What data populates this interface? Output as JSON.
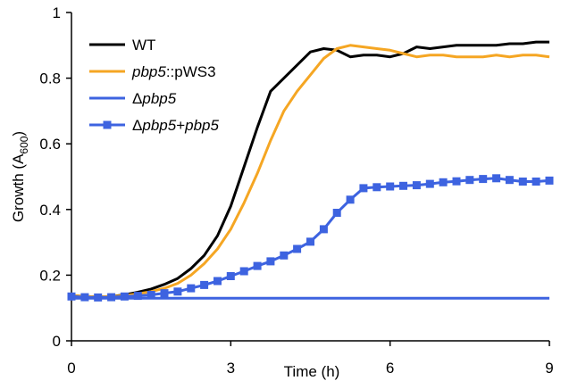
{
  "chart_data": {
    "type": "line",
    "xlabel": "Time (h)",
    "ylabel": {
      "prefix": "Growth (A",
      "subscript": "600",
      "suffix": ")"
    },
    "xlim": [
      0,
      9
    ],
    "ylim": [
      0,
      1
    ],
    "x_ticks": [
      "0",
      "3",
      "6",
      "9"
    ],
    "y_ticks": [
      "0",
      "0.2",
      "0.4",
      "0.6",
      "0.8",
      "1"
    ],
    "grid": false,
    "legend_position": "top-left",
    "series": [
      {
        "key": "wt",
        "legend": [
          {
            "text": "WT",
            "italic": false
          }
        ],
        "color": "#000000",
        "marker": "none",
        "x": [
          0,
          0.25,
          0.5,
          0.75,
          1,
          1.25,
          1.5,
          1.75,
          2,
          2.25,
          2.5,
          2.75,
          3,
          3.25,
          3.5,
          3.75,
          4,
          4.25,
          4.5,
          4.75,
          5,
          5.25,
          5.5,
          5.75,
          6,
          6.25,
          6.5,
          6.75,
          7,
          7.25,
          7.5,
          7.75,
          8,
          8.25,
          8.5,
          8.75,
          9
        ],
        "values": [
          0.138,
          0.135,
          0.134,
          0.135,
          0.14,
          0.148,
          0.158,
          0.172,
          0.19,
          0.22,
          0.26,
          0.32,
          0.41,
          0.53,
          0.65,
          0.76,
          0.8,
          0.84,
          0.88,
          0.89,
          0.885,
          0.865,
          0.87,
          0.87,
          0.865,
          0.875,
          0.895,
          0.89,
          0.895,
          0.9,
          0.9,
          0.9,
          0.9,
          0.905,
          0.905,
          0.91,
          0.91
        ]
      },
      {
        "key": "pbp5-pws3",
        "legend": [
          {
            "text": "pbp5",
            "italic": true
          },
          {
            "text": "::pWS3",
            "italic": false
          }
        ],
        "color": "#f5a623",
        "marker": "none",
        "x": [
          0,
          0.25,
          0.5,
          0.75,
          1,
          1.25,
          1.5,
          1.75,
          2,
          2.25,
          2.5,
          2.75,
          3,
          3.25,
          3.5,
          3.75,
          4,
          4.25,
          4.5,
          4.75,
          5,
          5.25,
          5.5,
          5.75,
          6,
          6.25,
          6.5,
          6.75,
          7,
          7.25,
          7.5,
          7.75,
          8,
          8.25,
          8.5,
          8.75,
          9
        ],
        "values": [
          0.138,
          0.135,
          0.134,
          0.135,
          0.138,
          0.143,
          0.15,
          0.16,
          0.175,
          0.2,
          0.235,
          0.28,
          0.34,
          0.42,
          0.51,
          0.61,
          0.7,
          0.76,
          0.81,
          0.86,
          0.89,
          0.9,
          0.895,
          0.89,
          0.885,
          0.875,
          0.865,
          0.87,
          0.87,
          0.865,
          0.865,
          0.865,
          0.87,
          0.865,
          0.87,
          0.87,
          0.865
        ]
      },
      {
        "key": "delta-pbp5",
        "legend": [
          {
            "text": "Δ",
            "italic": false
          },
          {
            "text": "pbp5",
            "italic": true
          }
        ],
        "color": "#3d63e0",
        "marker": "none",
        "x": [
          0,
          9
        ],
        "values": [
          0.13,
          0.13
        ]
      },
      {
        "key": "delta-pbp5-plus-pbp5",
        "legend": [
          {
            "text": "Δ",
            "italic": false
          },
          {
            "text": "pbp5",
            "italic": true
          },
          {
            "text": "+",
            "italic": false
          },
          {
            "text": "pbp5",
            "italic": true
          }
        ],
        "color": "#3d63e0",
        "marker": "square",
        "x": [
          0,
          0.25,
          0.5,
          0.75,
          1,
          1.25,
          1.5,
          1.75,
          2,
          2.25,
          2.5,
          2.75,
          3,
          3.25,
          3.5,
          3.75,
          4,
          4.25,
          4.5,
          4.75,
          5,
          5.25,
          5.5,
          5.75,
          6,
          6.25,
          6.5,
          6.75,
          7,
          7.25,
          7.5,
          7.75,
          8,
          8.25,
          8.5,
          8.75,
          9
        ],
        "values": [
          0.135,
          0.133,
          0.132,
          0.133,
          0.135,
          0.137,
          0.14,
          0.145,
          0.15,
          0.16,
          0.17,
          0.182,
          0.197,
          0.212,
          0.228,
          0.242,
          0.26,
          0.28,
          0.302,
          0.34,
          0.39,
          0.43,
          0.465,
          0.468,
          0.47,
          0.472,
          0.474,
          0.478,
          0.483,
          0.486,
          0.49,
          0.493,
          0.495,
          0.49,
          0.485,
          0.485,
          0.488
        ]
      }
    ]
  }
}
